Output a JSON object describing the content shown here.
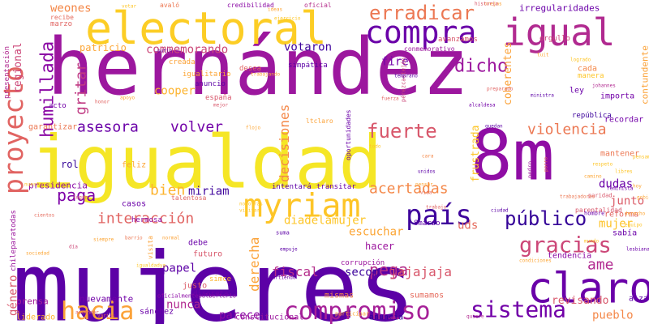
{
  "cloud": {
    "words": [
      {
        "text": "hernández",
        "color": "#9c179e"
      },
      {
        "text": "mujeres",
        "color": "#5c01a6"
      },
      {
        "text": "igualdad",
        "color": "#f5e626"
      },
      {
        "text": "8m",
        "color": "#8f0da4"
      },
      {
        "text": "electoral",
        "color": "#fccd25"
      },
      {
        "text": "myriam",
        "color": "#fdc527"
      },
      {
        "text": "claro",
        "color": "#6a00a8"
      },
      {
        "text": "compra",
        "color": "#6a00a8"
      },
      {
        "text": "igual",
        "color": "#b12a90"
      },
      {
        "text": "compromiso",
        "color": "#a62098"
      },
      {
        "text": "sistema",
        "color": "#7201a8"
      },
      {
        "text": "hacia",
        "color": "#fba238"
      },
      {
        "text": "gracias",
        "color": "#cc4778"
      },
      {
        "text": "país",
        "color": "#3e049c"
      },
      {
        "text": "proyecto",
        "color": "#e16462"
      },
      {
        "text": "erradicar",
        "color": "#ec7853"
      },
      {
        "text": "público",
        "color": "#350498"
      },
      {
        "text": "fuerte",
        "color": "#d8576b"
      },
      {
        "text": "violencia",
        "color": "#ec7853"
      },
      {
        "text": "humillada",
        "color": "#8b0aa5"
      },
      {
        "text": "asesora",
        "color": "#6a00a8"
      },
      {
        "text": "volver",
        "color": "#7201a8"
      },
      {
        "text": "dicho",
        "color": "#9c179e"
      },
      {
        "text": "interacción",
        "color": "#e16462"
      },
      {
        "text": "gritar",
        "color": "#c03a83"
      },
      {
        "text": "paga",
        "color": "#7e03a8"
      },
      {
        "text": "bien",
        "color": "#fdb42f"
      },
      {
        "text": "pega",
        "color": "#b52f8c"
      },
      {
        "text": "ame",
        "color": "#b12a90"
      },
      {
        "text": "acertadas",
        "color": "#f48849"
      },
      {
        "text": "decisiones",
        "color": "#f48849"
      },
      {
        "text": "miriam",
        "color": "#3e049c"
      },
      {
        "text": "derecha",
        "color": "#fba238"
      },
      {
        "text": "fiscal",
        "color": "#b52f8c"
      },
      {
        "text": "jajajaja",
        "color": "#d8576b"
      },
      {
        "text": "hacer",
        "color": "#9c179e"
      },
      {
        "text": "papel",
        "color": "#5c01a6"
      },
      {
        "text": "secom",
        "color": "#3e049c"
      },
      {
        "text": "parece",
        "color": "#8b0aa5"
      },
      {
        "text": "género",
        "color": "#d8576b"
      },
      {
        "text": "revisando",
        "color": "#d8576b"
      },
      {
        "text": "diadelamujer",
        "color": "#fdc527"
      },
      {
        "text": "nunca",
        "color": "#b12a90"
      },
      {
        "text": "dudas",
        "color": "#6a00a8"
      },
      {
        "text": "junto",
        "color": "#db5c68"
      },
      {
        "text": "escuchar",
        "color": "#fca636"
      },
      {
        "text": "uds",
        "color": "#e56b5d"
      },
      {
        "text": "mujer",
        "color": "#fdc328"
      },
      {
        "text": "pueblo",
        "color": "#f48849"
      },
      {
        "text": "votaron",
        "color": "#3e049c"
      },
      {
        "text": "fire",
        "color": "#7301a8"
      },
      {
        "text": "commemorando",
        "color": "#cc4778"
      },
      {
        "text": "weones",
        "color": "#f48849"
      },
      {
        "text": "cooper",
        "color": "#fdb42f"
      },
      {
        "text": "coherentes",
        "color": "#fba238"
      },
      {
        "text": "frustrada",
        "color": "#fdc527"
      },
      {
        "text": "regional",
        "color": "#cc4778"
      },
      {
        "text": "irregularidades",
        "color": "#6a00a8"
      },
      {
        "text": "contundente",
        "color": "#fba238"
      },
      {
        "text": "patricio",
        "color": "#fca636"
      },
      {
        "text": "rol",
        "color": "#350498"
      },
      {
        "text": "presidencia",
        "color": "#8b0aa5"
      },
      {
        "text": "nuevamente",
        "color": "#7201a8"
      },
      {
        "text": "prensa",
        "color": "#a62098"
      },
      {
        "text": "liderado",
        "color": "#fdb42f"
      },
      {
        "text": "sánchez",
        "color": "#6a00a8"
      },
      {
        "text": "constitucional",
        "color": "#9c179e"
      },
      {
        "text": "anuncia",
        "color": "#350498"
      },
      {
        "text": "alza",
        "color": "#5c01a6"
      },
      {
        "text": "sabía",
        "color": "#6a00a8"
      },
      {
        "text": "tendencia",
        "color": "#8b0aa5"
      },
      {
        "text": "mismas",
        "color": "#f48849"
      },
      {
        "text": "sumamos",
        "color": "#e56b5d"
      },
      {
        "text": "corrupción",
        "color": "#9c179e"
      },
      {
        "text": "debe",
        "color": "#6a00a8"
      },
      {
        "text": "futuro",
        "color": "#d8576b"
      },
      {
        "text": "simce",
        "color": "#fdb42f"
      },
      {
        "text": "justo",
        "color": "#db5c68"
      },
      {
        "text": "casos",
        "color": "#6a00a8"
      },
      {
        "text": "hermosa",
        "color": "#8b0aa5"
      },
      {
        "text": "mantener",
        "color": "#ec7853"
      },
      {
        "text": "reforma",
        "color": "#e16462"
      },
      {
        "text": "anuncio",
        "color": "#5c01a6"
      },
      {
        "text": "simpática",
        "color": "#5c01a6"
      },
      {
        "text": "ley",
        "color": "#6a00a8"
      },
      {
        "text": "importa",
        "color": "#7201a8"
      },
      {
        "text": "recordar",
        "color": "#7201a8"
      },
      {
        "text": "república",
        "color": "#3e049c"
      },
      {
        "text": "cada",
        "color": "#f48849"
      },
      {
        "text": "manera",
        "color": "#fdc527"
      },
      {
        "text": "orgullo",
        "color": "#cc4778"
      },
      {
        "text": "avanzamos",
        "color": "#d8576b"
      },
      {
        "text": "conmemorativo",
        "color": "#9c179e"
      },
      {
        "text": "igualitario",
        "color": "#fca636"
      },
      {
        "text": "españa",
        "color": "#d8576b"
      },
      {
        "text": "creada",
        "color": "#fba238"
      },
      {
        "text": "desea",
        "color": "#e16462"
      },
      {
        "text": "acto",
        "color": "#7201a8"
      },
      {
        "text": "feliz",
        "color": "#fca636"
      },
      {
        "text": "garantizar",
        "color": "#ec7853"
      },
      {
        "text": "presentación",
        "color": "#b12a90"
      },
      {
        "text": "marzo",
        "color": "#e16462"
      },
      {
        "text": "recibe",
        "color": "#e56b5d"
      },
      {
        "text": "avaló",
        "color": "#ec7853"
      },
      {
        "text": "credibilidad",
        "color": "#8b0aa5"
      },
      {
        "text": "oficial",
        "color": "#b52f8c"
      },
      {
        "text": "intentará",
        "color": "#5c01a6"
      },
      {
        "text": "transitar",
        "color": "#6a00a8"
      },
      {
        "text": "8marzo",
        "color": "#5c01a6"
      },
      {
        "text": "ltclaro",
        "color": "#fba238"
      },
      {
        "text": "oportunidades",
        "color": "#6a00a8"
      },
      {
        "text": "pérezcastejón",
        "color": "#cc4778"
      },
      {
        "text": "parentalidad",
        "color": "#d8576b"
      },
      {
        "text": "hombre",
        "color": "#6a00a8"
      },
      {
        "text": "paridad",
        "color": "#d8576b"
      },
      {
        "text": "suma",
        "color": "#5c01a6"
      },
      {
        "text": "visita",
        "color": "#fba238"
      },
      {
        "text": "chileparatodas",
        "color": "#9c179e"
      },
      {
        "text": "talentosa",
        "color": "#e16462"
      },
      {
        "text": "oficialmentepulberterio",
        "color": "#8b0aa5"
      },
      {
        "text": "discreta",
        "color": "#7201a8"
      },
      {
        "text": "participar",
        "color": "#fca636"
      },
      {
        "text": "empuje",
        "color": "#5c01a6"
      },
      {
        "text": "ministra",
        "color": "#5c01a6"
      },
      {
        "text": "alcaldesa",
        "color": "#7201a8"
      },
      {
        "text": "preparado",
        "color": "#e16462"
      },
      {
        "text": "temprano",
        "color": "#5c01a6"
      },
      {
        "text": "johannes",
        "color": "#b12a90"
      },
      {
        "text": "flojo",
        "color": "#fca636"
      },
      {
        "text": "pedro",
        "color": "#9c179e"
      },
      {
        "text": "porro",
        "color": "#e16462"
      },
      {
        "text": "feminista",
        "color": "#7201a8"
      },
      {
        "text": "lesbiana",
        "color": "#6a00a8"
      },
      {
        "text": "condiciones",
        "color": "#fca636"
      },
      {
        "text": "cientos",
        "color": "#e56b5d"
      },
      {
        "text": "quiere",
        "color": "#b12a90"
      },
      {
        "text": "orejas",
        "color": "#fba238"
      },
      {
        "text": "apoyo",
        "color": "#fca636"
      },
      {
        "text": "putin",
        "color": "#5c01a6"
      },
      {
        "text": "honor",
        "color": "#e16462"
      },
      {
        "text": "mejor",
        "color": "#d8576b"
      },
      {
        "text": "trabajando",
        "color": "#fba238"
      },
      {
        "text": "normal",
        "color": "#fba238"
      },
      {
        "text": "partiendo",
        "color": "#6a00a8"
      },
      {
        "text": "visitar",
        "color": "#fdc527"
      },
      {
        "text": "ascender",
        "color": "#e16462"
      },
      {
        "text": "varias",
        "color": "#d8576b"
      },
      {
        "text": "todo",
        "color": "#fdc527"
      },
      {
        "text": "cara",
        "color": "#f48849"
      },
      {
        "text": "barrio",
        "color": "#ec7853"
      },
      {
        "text": "ideas",
        "color": "#fca636"
      },
      {
        "text": "ejercicio",
        "color": "#fdc527"
      },
      {
        "text": "nosotras",
        "color": "#fdc527"
      },
      {
        "text": "lugar",
        "color": "#d8576b"
      },
      {
        "text": "unidos",
        "color": "#5c01a6"
      },
      {
        "text": "trabajo",
        "color": "#e16462"
      },
      {
        "text": "quedan",
        "color": "#5c01a6"
      },
      {
        "text": "tuit",
        "color": "#fca636"
      },
      {
        "text": "logrado",
        "color": "#fdc527"
      },
      {
        "text": "pensar",
        "color": "#fca636"
      },
      {
        "text": "vida",
        "color": "#e56b5d"
      },
      {
        "text": "historia",
        "color": "#d8576b"
      },
      {
        "text": "día",
        "color": "#cc4778"
      },
      {
        "text": "sociedad",
        "color": "#fca636"
      },
      {
        "text": "nuestro",
        "color": "#fdc527"
      },
      {
        "text": "siempre",
        "color": "#fca636"
      },
      {
        "text": "votar",
        "color": "#fdc527"
      },
      {
        "text": "igualdadya",
        "color": "#fdc527"
      },
      {
        "text": "fuerza",
        "color": "#e16462"
      },
      {
        "text": "ciudad",
        "color": "#5c01a6"
      },
      {
        "text": "derecho",
        "color": "#fca636"
      },
      {
        "text": "equipo",
        "color": "#fdc527"
      },
      {
        "text": "trabajadoras",
        "color": "#ec7853"
      },
      {
        "text": "respeto",
        "color": "#fdc527"
      },
      {
        "text": "camino",
        "color": "#fca636"
      },
      {
        "text": "mundo",
        "color": "#fdc527"
      },
      {
        "text": "libres",
        "color": "#fdc527"
      },
      {
        "text": "hoy",
        "color": "#fca636"
      },
      {
        "text": "gobierno",
        "color": "#fca636"
      },
      {
        "text": "pensamos",
        "color": "#fdc527"
      },
      {
        "text": "voto",
        "color": "#fca636"
      },
      {
        "text": "chile",
        "color": "#fdc527"
      }
    ]
  }
}
